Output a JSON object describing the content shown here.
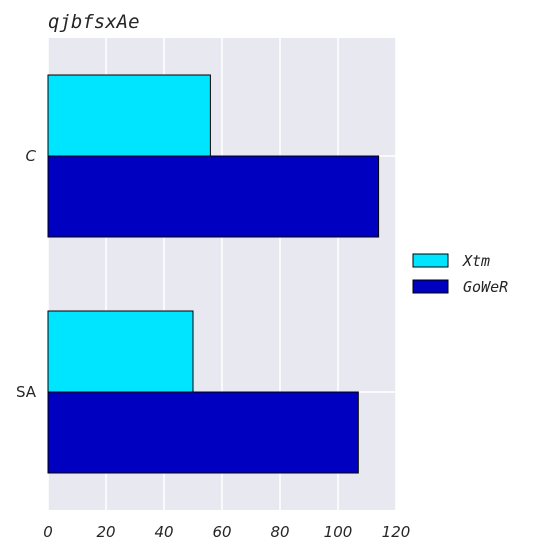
{
  "chart_data": {
    "type": "bar",
    "orientation": "horizontal",
    "title": "qjbfsxAe",
    "xlabel": "",
    "ylabel": "",
    "categories": [
      "C",
      "SA"
    ],
    "series": [
      {
        "name": "Xtm",
        "color": "#00e5ff",
        "values": [
          56,
          50
        ]
      },
      {
        "name": "GoWeR",
        "color": "#0000c0",
        "values": [
          114,
          107
        ]
      }
    ],
    "xlim": [
      0,
      120
    ],
    "xticks": [
      "0",
      "20",
      "40",
      "60",
      "80",
      "100",
      "120"
    ],
    "grid": true,
    "legend": "right",
    "background": "#e8e8f0",
    "gridline_color": "#ffffff"
  }
}
